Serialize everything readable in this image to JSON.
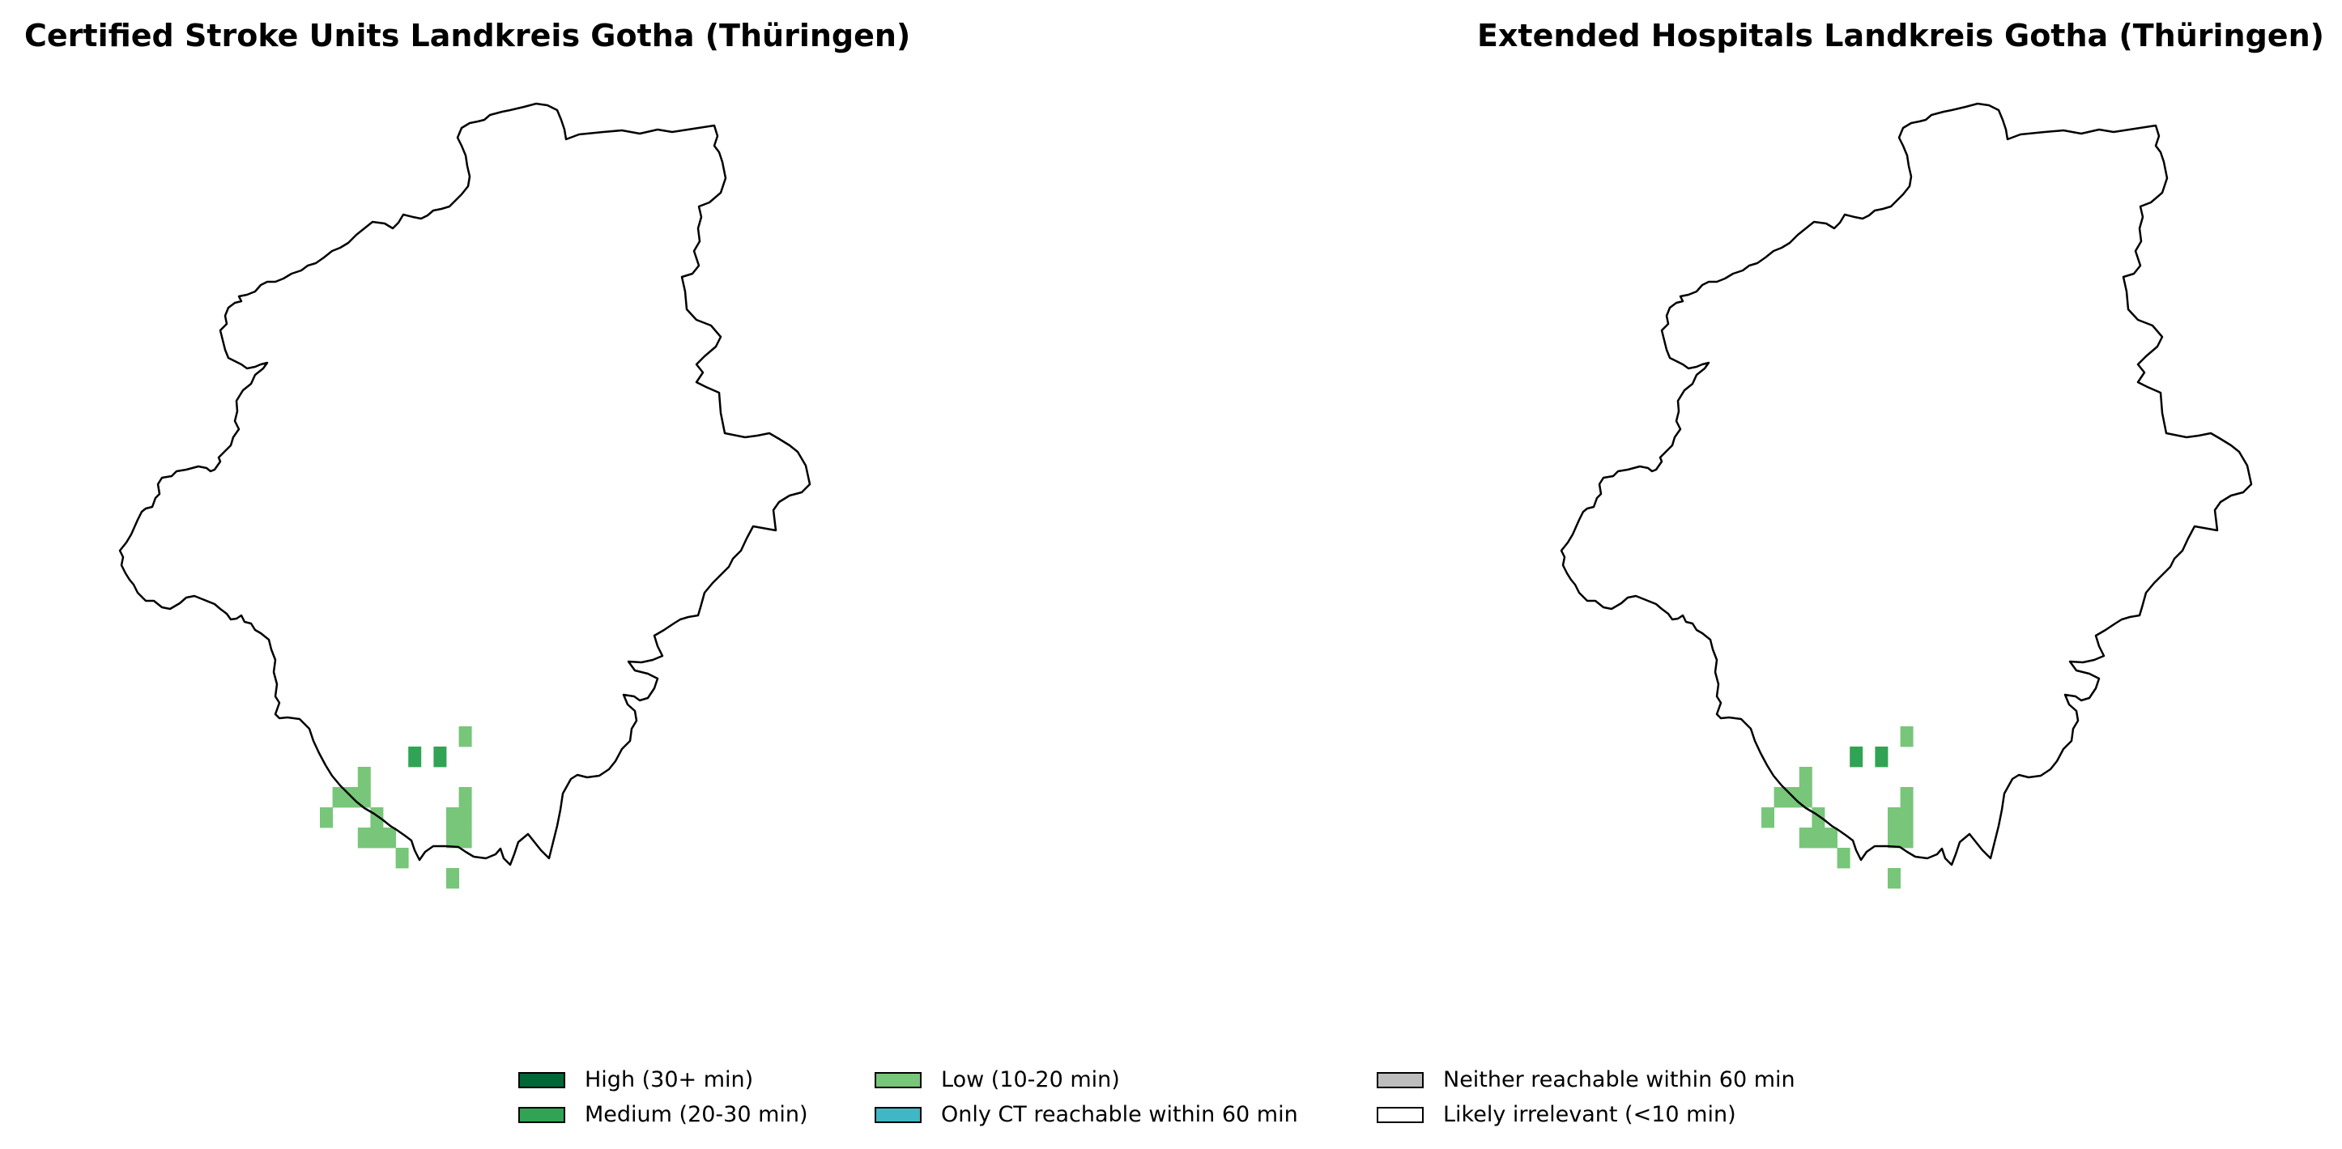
{
  "titles": {
    "left": "Certified Stroke Units Landkreis Gotha (Thüringen)",
    "right": "Extended Hospitals Landkreis Gotha (Thüringen)"
  },
  "legend": [
    {
      "label": "High (30+ min)",
      "color": "#006837"
    },
    {
      "label": "Medium (20-30 min)",
      "color": "#31a354"
    },
    {
      "label": "Low (10-20 min)",
      "color": "#78c679"
    },
    {
      "label": "Only CT reachable within 60 min",
      "color": "#41b6c4"
    },
    {
      "label": "Neither reachable within 60 min",
      "color": "#bdbdbd"
    },
    {
      "label": "Likely irrelevant (<10 min)",
      "color": "#ffffff"
    }
  ],
  "maps": [
    {
      "name": "certified-stroke-units",
      "cells": [
        {
          "col": 11,
          "row": 0,
          "class": "Low (10-20 min)"
        },
        {
          "col": 7,
          "row": 1,
          "class": "Medium (20-30 min)"
        },
        {
          "col": 9,
          "row": 1,
          "class": "Medium (20-30 min)"
        },
        {
          "col": 3,
          "row": 2,
          "class": "Low (10-20 min)"
        },
        {
          "col": 1,
          "row": 3,
          "class": "Low (10-20 min)"
        },
        {
          "col": 2,
          "row": 3,
          "class": "Low (10-20 min)"
        },
        {
          "col": 3,
          "row": 3,
          "class": "Low (10-20 min)"
        },
        {
          "col": 11,
          "row": 3,
          "class": "Low (10-20 min)"
        },
        {
          "col": 0,
          "row": 4,
          "class": "Low (10-20 min)"
        },
        {
          "col": 4,
          "row": 4,
          "class": "Low (10-20 min)"
        },
        {
          "col": 10,
          "row": 4,
          "class": "Low (10-20 min)"
        },
        {
          "col": 11,
          "row": 4,
          "class": "Low (10-20 min)"
        },
        {
          "col": 3,
          "row": 5,
          "class": "Low (10-20 min)"
        },
        {
          "col": 4,
          "row": 5,
          "class": "Low (10-20 min)"
        },
        {
          "col": 5,
          "row": 5,
          "class": "Low (10-20 min)"
        },
        {
          "col": 10,
          "row": 5,
          "class": "Low (10-20 min)"
        },
        {
          "col": 11,
          "row": 5,
          "class": "Low (10-20 min)"
        },
        {
          "col": 6,
          "row": 6,
          "class": "Low (10-20 min)"
        },
        {
          "col": 10,
          "row": 7,
          "class": "Low (10-20 min)"
        }
      ]
    },
    {
      "name": "extended-hospitals",
      "cells": [
        {
          "col": 11,
          "row": 0,
          "class": "Low (10-20 min)"
        },
        {
          "col": 7,
          "row": 1,
          "class": "Medium (20-30 min)"
        },
        {
          "col": 9,
          "row": 1,
          "class": "Medium (20-30 min)"
        },
        {
          "col": 3,
          "row": 2,
          "class": "Low (10-20 min)"
        },
        {
          "col": 1,
          "row": 3,
          "class": "Low (10-20 min)"
        },
        {
          "col": 2,
          "row": 3,
          "class": "Low (10-20 min)"
        },
        {
          "col": 3,
          "row": 3,
          "class": "Low (10-20 min)"
        },
        {
          "col": 11,
          "row": 3,
          "class": "Low (10-20 min)"
        },
        {
          "col": 0,
          "row": 4,
          "class": "Low (10-20 min)"
        },
        {
          "col": 4,
          "row": 4,
          "class": "Low (10-20 min)"
        },
        {
          "col": 10,
          "row": 4,
          "class": "Low (10-20 min)"
        },
        {
          "col": 11,
          "row": 4,
          "class": "Low (10-20 min)"
        },
        {
          "col": 3,
          "row": 5,
          "class": "Low (10-20 min)"
        },
        {
          "col": 4,
          "row": 5,
          "class": "Low (10-20 min)"
        },
        {
          "col": 5,
          "row": 5,
          "class": "Low (10-20 min)"
        },
        {
          "col": 10,
          "row": 5,
          "class": "Low (10-20 min)"
        },
        {
          "col": 11,
          "row": 5,
          "class": "Low (10-20 min)"
        },
        {
          "col": 6,
          "row": 6,
          "class": "Low (10-20 min)"
        },
        {
          "col": 10,
          "row": 7,
          "class": "Low (10-20 min)"
        }
      ]
    }
  ]
}
